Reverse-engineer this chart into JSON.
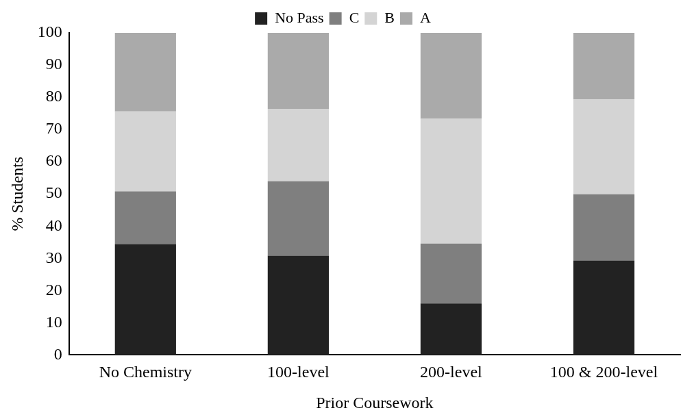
{
  "chart_data": {
    "type": "bar",
    "stacked": true,
    "xlabel": "Prior Coursework",
    "ylabel": "% Students",
    "categories": [
      "No Chemistry",
      "100-level",
      "200-level",
      "100 & 200-level"
    ],
    "series": [
      {
        "name": "No Pass",
        "color": "#222222",
        "values": [
          34.4,
          30.8,
          16,
          29.3
        ]
      },
      {
        "name": "C",
        "color": "#7f7f7f",
        "values": [
          16.4,
          23.1,
          18.6,
          20.6
        ]
      },
      {
        "name": "B",
        "color": "#d4d4d4",
        "values": [
          24.8,
          22.5,
          38.7,
          29.4
        ]
      },
      {
        "name": "A",
        "color": "#aaaaaa",
        "values": [
          24.4,
          23.6,
          26.7,
          20.7
        ]
      }
    ],
    "ylim": [
      0,
      100
    ],
    "yticks": [
      0,
      10,
      20,
      30,
      40,
      50,
      60,
      70,
      80,
      90,
      100
    ],
    "grid": false,
    "legend": "top"
  }
}
